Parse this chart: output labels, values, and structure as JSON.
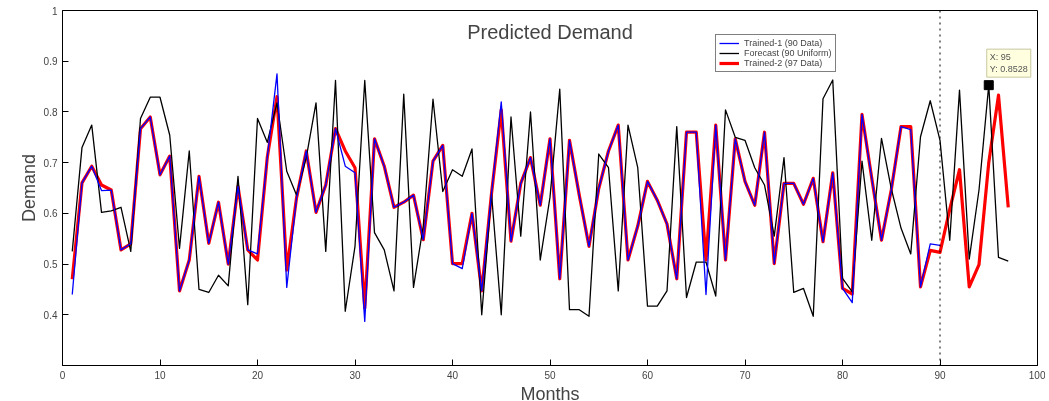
{
  "chart_data": {
    "type": "line",
    "title": "Predicted Demand",
    "xlabel": "Months",
    "ylabel": "Demand",
    "xlim": [
      0,
      100
    ],
    "xticks": [
      0,
      10,
      20,
      30,
      40,
      50,
      60,
      70,
      80,
      90,
      100
    ],
    "ylim": [
      0.3,
      1
    ],
    "yticks": [
      0.4,
      0.5,
      0.6,
      0.7,
      0.8,
      0.9,
      1
    ],
    "grid": false,
    "legend": "top right",
    "marker": "none",
    "line_style": "solid",
    "x": [
      1,
      2,
      3,
      4,
      5,
      6,
      7,
      8,
      9,
      10,
      11,
      12,
      13,
      14,
      15,
      16,
      17,
      18,
      19,
      20,
      21,
      22,
      23,
      24,
      25,
      26,
      27,
      28,
      29,
      30,
      31,
      32,
      33,
      34,
      35,
      36,
      37,
      38,
      39,
      40,
      41,
      42,
      43,
      44,
      45,
      46,
      47,
      48,
      49,
      50,
      51,
      52,
      53,
      54,
      55,
      56,
      57,
      58,
      59,
      60,
      61,
      62,
      63,
      64,
      65,
      66,
      67,
      68,
      69,
      70,
      71,
      72,
      73,
      74,
      75,
      76,
      77,
      78,
      79,
      80,
      81,
      82,
      83,
      84,
      85,
      86,
      87,
      88,
      89,
      90,
      91,
      92,
      93,
      94,
      95,
      96,
      97
    ],
    "series": [
      {
        "name": "Trained-1 (90 Data)",
        "color": "#0000ff",
        "values": [
          0.44,
          0.66,
          0.693,
          0.645,
          0.646,
          0.528,
          0.54,
          0.767,
          0.79,
          0.676,
          0.713,
          0.447,
          0.508,
          0.673,
          0.541,
          0.622,
          0.5,
          0.653,
          0.528,
          0.52,
          0.71,
          0.875,
          0.454,
          0.63,
          0.723,
          0.602,
          0.656,
          0.767,
          0.693,
          0.68,
          0.387,
          0.747,
          0.693,
          0.612,
          0.622,
          0.636,
          0.548,
          0.703,
          0.734,
          0.501,
          0.491,
          0.6,
          0.447,
          0.639,
          0.82,
          0.545,
          0.659,
          0.71,
          0.616,
          0.747,
          0.471,
          0.744,
          0.636,
          0.535,
          0.649,
          0.723,
          0.774,
          0.508,
          0.575,
          0.663,
          0.626,
          0.579,
          0.471,
          0.76,
          0.76,
          0.44,
          0.774,
          0.508,
          0.747,
          0.663,
          0.616,
          0.76,
          0.501,
          0.659,
          0.659,
          0.618,
          0.669,
          0.544,
          0.68,
          0.452,
          0.424,
          0.795,
          0.669,
          0.547,
          0.646,
          0.771,
          0.765,
          0.455,
          0.54,
          0.537,
          null,
          null,
          null,
          null,
          null,
          null,
          null
        ]
      },
      {
        "name": "Forecast (90 Uniform)",
        "color": "#000000",
        "values": [
          0.525,
          0.73,
          0.774,
          0.602,
          0.605,
          0.612,
          0.525,
          0.787,
          0.829,
          0.829,
          0.754,
          0.531,
          0.723,
          0.45,
          0.444,
          0.478,
          0.457,
          0.673,
          0.42,
          0.787,
          0.74,
          0.818,
          0.683,
          0.636,
          0.71,
          0.818,
          0.525,
          0.862,
          0.407,
          0.535,
          0.862,
          0.562,
          0.528,
          0.447,
          0.835,
          0.454,
          0.575,
          0.825,
          0.643,
          0.686,
          0.673,
          0.727,
          0.4,
          0.639,
          0.4,
          0.79,
          0.555,
          0.8,
          0.508,
          0.632,
          0.845,
          0.41,
          0.41,
          0.397,
          0.717,
          0.69,
          0.447,
          0.774,
          0.69,
          0.417,
          0.417,
          0.447,
          0.771,
          0.434,
          0.504,
          0.504,
          0.437,
          0.804,
          0.75,
          0.744,
          0.69,
          0.656,
          0.555,
          0.71,
          0.444,
          0.452,
          0.397,
          0.826,
          0.863,
          0.472,
          0.445,
          0.703,
          0.547,
          0.748,
          0.649,
          0.571,
          0.52,
          0.751,
          0.822,
          0.744,
          0.547,
          0.843,
          0.51,
          0.646,
          0.853,
          0.513,
          0.506
        ]
      },
      {
        "name": "Trained-2 (97 Data)",
        "color": "#ff0000",
        "values": [
          0.47,
          0.66,
          0.693,
          0.656,
          0.646,
          0.528,
          0.54,
          0.767,
          0.79,
          0.676,
          0.713,
          0.447,
          0.508,
          0.673,
          0.541,
          0.622,
          0.5,
          0.653,
          0.528,
          0.508,
          0.71,
          0.83,
          0.488,
          0.63,
          0.723,
          0.602,
          0.656,
          0.767,
          0.723,
          0.69,
          0.413,
          0.747,
          0.693,
          0.612,
          0.622,
          0.636,
          0.548,
          0.703,
          0.734,
          0.501,
          0.501,
          0.6,
          0.447,
          0.639,
          0.804,
          0.545,
          0.659,
          0.71,
          0.616,
          0.747,
          0.471,
          0.744,
          0.636,
          0.535,
          0.649,
          0.723,
          0.774,
          0.508,
          0.575,
          0.663,
          0.626,
          0.579,
          0.471,
          0.76,
          0.76,
          0.508,
          0.774,
          0.508,
          0.747,
          0.663,
          0.616,
          0.76,
          0.501,
          0.659,
          0.659,
          0.618,
          0.669,
          0.544,
          0.68,
          0.452,
          0.441,
          0.795,
          0.669,
          0.547,
          0.646,
          0.771,
          0.771,
          0.455,
          0.527,
          0.523,
          0.608,
          0.686,
          0.455,
          0.499,
          0.7,
          0.833,
          0.612
        ]
      }
    ],
    "ref_lines": [
      {
        "axis": "x",
        "value": 90,
        "color": "#000000",
        "line_style": "dotted"
      }
    ],
    "annotations": [
      {
        "text": "X: 95\nY: 0.8528",
        "x": 95,
        "y": 0.8528
      }
    ]
  }
}
